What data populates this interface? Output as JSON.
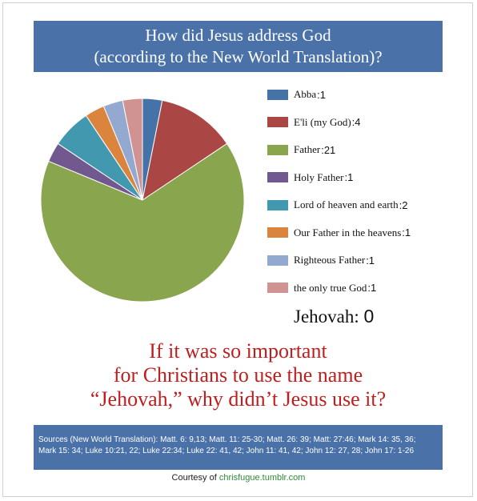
{
  "header": {
    "title_line1": "How did Jesus address God",
    "title_line2": "(according to the New World Translation)?"
  },
  "chart_data": {
    "type": "pie",
    "categories": [
      "Abba",
      "E'li (my God)",
      "Father",
      "Holy Father",
      "Lord of heaven and earth",
      "Our Father in the heavens",
      "Righteous Father",
      "the only true God"
    ],
    "values": [
      1,
      4,
      21,
      1,
      2,
      1,
      1,
      1
    ],
    "colors": [
      "#4572a7",
      "#aa4643",
      "#89a54e",
      "#71588f",
      "#4198af",
      "#db843d",
      "#93a9cf",
      "#d19392"
    ],
    "legend_position": "right"
  },
  "jehovah": {
    "label": "Jehovah:",
    "value": "0"
  },
  "question": {
    "line1": "If it was so important",
    "line2": "for Christians to use the name",
    "line3": "“Jehovah,” why didn’t Jesus use it?"
  },
  "sources": {
    "line1": "Sources (New World Translation): Matt. 6: 9,13; Matt. 11: 25-30; Matt. 26: 39; Matt: 27:46; Mark 14: 35, 36;",
    "line2": "Mark 15: 34; Luke 10:21, 22; Luke 22:34; Luke 22: 41, 42; John 11: 41, 42; John 12: 27, 28; John 17: 1-26"
  },
  "courtesy": {
    "prefix": "Courtesy of",
    "link": "chrisfugue.tumblr.com"
  }
}
